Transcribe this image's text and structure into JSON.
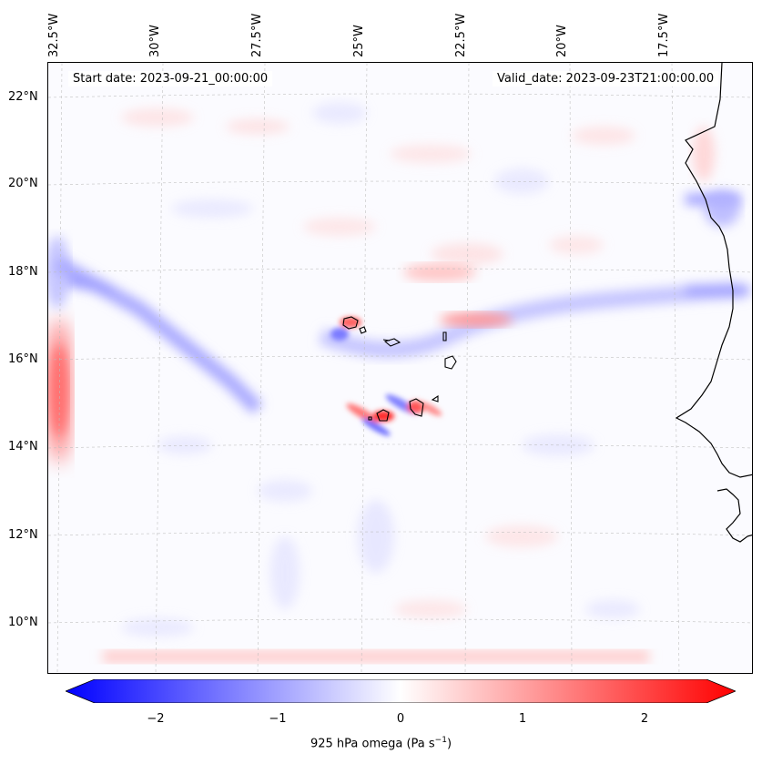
{
  "map": {
    "lon_labels": [
      "32.5°W",
      "30°W",
      "27.5°W",
      "25°W",
      "22.5°W",
      "20°W",
      "17.5°W"
    ],
    "lat_labels": [
      "22°N",
      "20°N",
      "18°N",
      "16°N",
      "14°N",
      "12°N",
      "10°N"
    ],
    "start_date": "Start date: 2023-09-21_00:00:00",
    "valid_date": "Valid_date: 2023-09-23T21:00:00.00",
    "extent": {
      "lon_min": -32.8,
      "lon_max": -15.5,
      "lat_min": 8.9,
      "lat_max": 22.8
    },
    "gridlines": true,
    "coastline_color": "#000000"
  },
  "colorbar": {
    "label_prefix": "925 hPa omega (Pa s",
    "label_exp": "−1",
    "label_suffix": ")",
    "ticks": [
      "−2",
      "−1",
      "0",
      "1",
      "2"
    ],
    "tick_values": [
      -2,
      -1,
      0,
      1,
      2
    ],
    "range": [
      -2.5,
      2.5
    ],
    "colormap": "bwr",
    "extend": "both",
    "color_min": "#0000ff",
    "color_mid": "#ffffff",
    "color_max": "#ff0000"
  }
}
